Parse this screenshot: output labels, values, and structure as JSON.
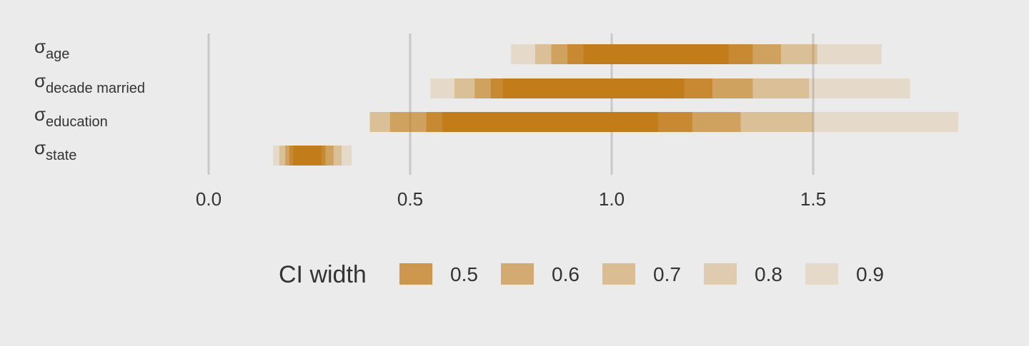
{
  "chart_data": {
    "type": "interval",
    "xlim": [
      -0.38,
      1.95
    ],
    "x_ticks": [
      0.0,
      0.5,
      1.0,
      1.5
    ],
    "x_tick_labels": [
      "0.0",
      "0.5",
      "1.0",
      "1.5"
    ],
    "grid": true,
    "legend_position": "bottom",
    "legend_title": "CI width",
    "ci_levels": [
      "0.5",
      "0.6",
      "0.7",
      "0.8",
      "0.9"
    ],
    "ci_opacity": [
      0.72,
      0.55,
      0.4,
      0.27,
      0.15
    ],
    "color": "#c0770f",
    "rows": [
      {
        "symbol": "σ",
        "subscript": "age",
        "intervals": {
          "0.5": [
            0.93,
            1.29
          ],
          "0.6": [
            0.89,
            1.35
          ],
          "0.7": [
            0.85,
            1.42
          ],
          "0.8": [
            0.81,
            1.51
          ],
          "0.9": [
            0.75,
            1.67
          ]
        }
      },
      {
        "symbol": "σ",
        "subscript": "decade married",
        "intervals": {
          "0.5": [
            0.73,
            1.18
          ],
          "0.6": [
            0.7,
            1.25
          ],
          "0.7": [
            0.66,
            1.35
          ],
          "0.8": [
            0.61,
            1.49
          ],
          "0.9": [
            0.55,
            1.74
          ]
        }
      },
      {
        "symbol": "σ",
        "subscript": "education",
        "intervals": {
          "0.5": [
            0.58,
            1.115
          ],
          "0.6": [
            0.54,
            1.2
          ],
          "0.7": [
            0.45,
            1.32
          ],
          "0.8": [
            0.4,
            1.5
          ],
          "0.9": [
            0.4,
            1.86
          ]
        }
      },
      {
        "symbol": "σ",
        "subscript": "state",
        "intervals": {
          "0.5": [
            0.21,
            0.28
          ],
          "0.6": [
            0.2,
            0.29
          ],
          "0.7": [
            0.19,
            0.31
          ],
          "0.8": [
            0.175,
            0.33
          ],
          "0.9": [
            0.16,
            0.355
          ]
        }
      }
    ]
  }
}
